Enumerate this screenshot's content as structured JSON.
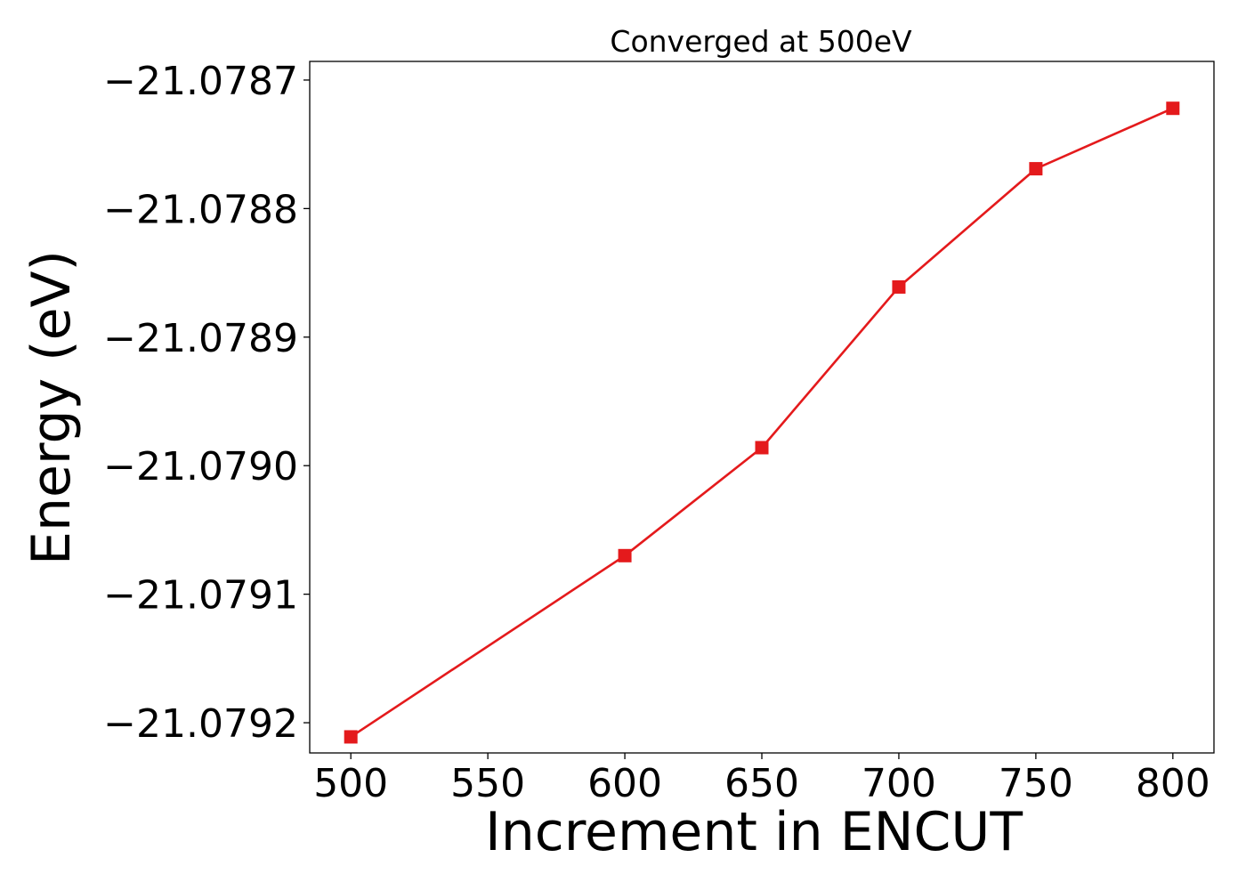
{
  "chart_data": {
    "type": "line",
    "title": "Converged at 500eV",
    "xlabel": "Increment in ENCUT",
    "ylabel": "Energy (eV)",
    "x": [
      500,
      600,
      650,
      700,
      750,
      800
    ],
    "series": [
      {
        "values": [
          -21.079211,
          -21.07907,
          -21.078986,
          -21.078861,
          -21.078769,
          -21.078722
        ],
        "color": "#e41a1c",
        "marker": "square"
      }
    ],
    "xticks": [
      "500",
      "550",
      "600",
      "650",
      "700",
      "750",
      "800"
    ],
    "yticks": [
      "−21.0787",
      "−21.0788",
      "−21.0789",
      "−21.0790",
      "−21.0791",
      "−21.0792"
    ],
    "xlim": [
      485,
      815
    ],
    "ylim": [
      -21.0792235,
      -21.0786855
    ],
    "grid": false,
    "legend": "none"
  }
}
